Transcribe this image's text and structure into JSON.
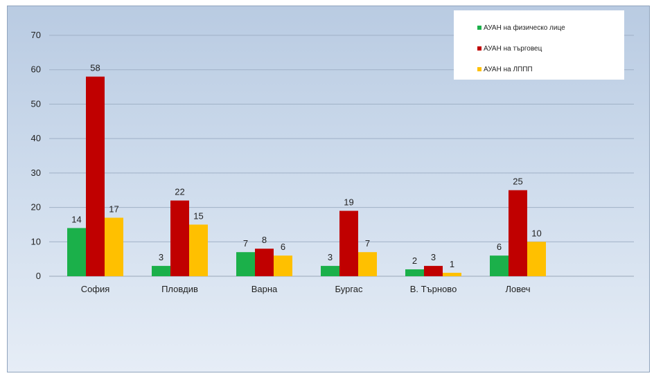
{
  "chart_data": {
    "type": "bar",
    "categories": [
      "София",
      "Пловдив",
      "Варна",
      "Бургас",
      "В. Търново",
      "Ловеч"
    ],
    "series": [
      {
        "name": "АУАН на физическо лице",
        "color": "#1bb04a",
        "values": [
          14,
          3,
          7,
          3,
          2,
          6
        ]
      },
      {
        "name": "АУАН на търговец",
        "color": "#c00000",
        "values": [
          58,
          22,
          8,
          19,
          3,
          25
        ]
      },
      {
        "name": "АУАН на ЛППП",
        "color": "#ffc000",
        "values": [
          17,
          15,
          6,
          7,
          1,
          10
        ]
      }
    ],
    "y_ticks": [
      0,
      10,
      20,
      30,
      40,
      50,
      60,
      70
    ],
    "ylim": [
      0,
      70
    ],
    "grid": true,
    "legend_position": "top-right",
    "data_labels": true
  }
}
